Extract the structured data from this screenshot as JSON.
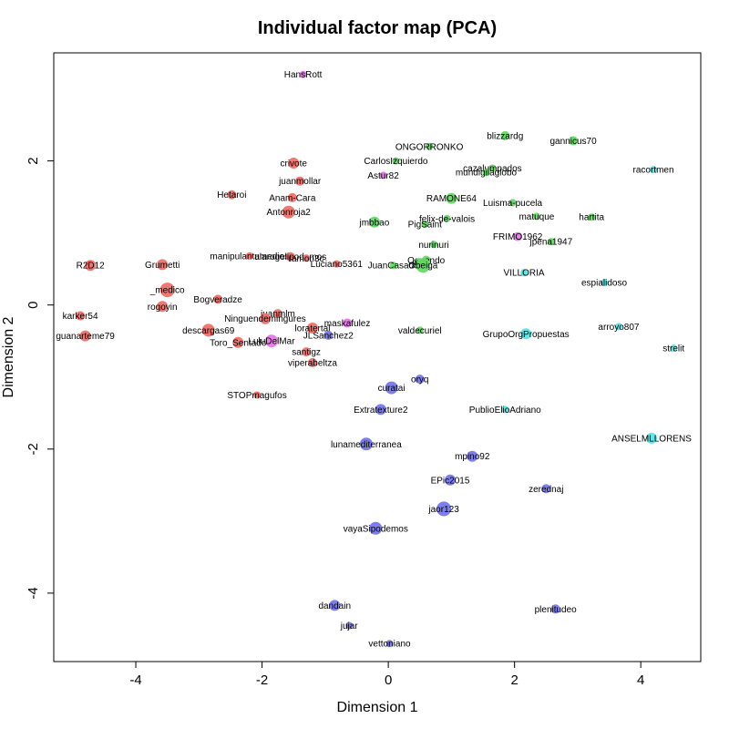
{
  "chart_data": {
    "type": "scatter",
    "title": "Individual factor map (PCA)",
    "xlabel": "Dimension 1",
    "ylabel": "Dimension 2",
    "xlim": [
      -5.3,
      4.95
    ],
    "ylim": [
      -4.95,
      3.5
    ],
    "xticks": [
      -4,
      -2,
      0,
      2,
      4
    ],
    "yticks": [
      -4,
      -2,
      0,
      2
    ],
    "grid": false,
    "colors": {
      "red": "#f0706a",
      "green": "#66d966",
      "blue": "#7777ee",
      "cyan": "#55e6e6",
      "magenta": "#e877e8"
    },
    "points": [
      {
        "label": "HansRott",
        "x": -1.35,
        "y": 3.2,
        "c": "magenta",
        "r": 4
      },
      {
        "label": "blizzardg",
        "x": 1.85,
        "y": 2.35,
        "c": "green",
        "r": 5
      },
      {
        "label": "gannicus70",
        "x": 2.93,
        "y": 2.28,
        "c": "green",
        "r": 5
      },
      {
        "label": "ONGORRONKO",
        "x": 0.65,
        "y": 2.2,
        "c": "green",
        "r": 4
      },
      {
        "label": "crivote",
        "x": -1.5,
        "y": 1.97,
        "c": "red",
        "r": 6
      },
      {
        "label": "CarlosIzquierdo",
        "x": 0.12,
        "y": 2.0,
        "c": "green",
        "r": 4
      },
      {
        "label": "cazalumpados",
        "x": 1.65,
        "y": 1.9,
        "c": "green",
        "r": 4
      },
      {
        "label": "mundigilaglobo",
        "x": 1.55,
        "y": 1.84,
        "c": "green",
        "r": 4
      },
      {
        "label": "racortmen",
        "x": 4.2,
        "y": 1.88,
        "c": "cyan",
        "r": 4
      },
      {
        "label": "Astur82",
        "x": -0.08,
        "y": 1.8,
        "c": "magenta",
        "r": 4
      },
      {
        "label": "juanmollar",
        "x": -1.4,
        "y": 1.72,
        "c": "red",
        "r": 5
      },
      {
        "label": "Hetaroi",
        "x": -2.48,
        "y": 1.53,
        "c": "red",
        "r": 5
      },
      {
        "label": "Anam-Cara",
        "x": -1.52,
        "y": 1.49,
        "c": "red",
        "r": 5
      },
      {
        "label": "RAMONE64",
        "x": 1.0,
        "y": 1.48,
        "c": "green",
        "r": 6
      },
      {
        "label": "Luisma-pucela",
        "x": 1.97,
        "y": 1.42,
        "c": "green",
        "r": 4
      },
      {
        "label": "Antonroja2",
        "x": -1.58,
        "y": 1.29,
        "c": "red",
        "r": 7
      },
      {
        "label": "matuque",
        "x": 2.35,
        "y": 1.23,
        "c": "green",
        "r": 4
      },
      {
        "label": "hartita",
        "x": 3.22,
        "y": 1.22,
        "c": "green",
        "r": 4
      },
      {
        "label": "felix-de-valois",
        "x": 0.93,
        "y": 1.2,
        "c": "green",
        "r": 4
      },
      {
        "label": "jmbbao",
        "x": -0.22,
        "y": 1.15,
        "c": "green",
        "r": 6
      },
      {
        "label": "PigSaint",
        "x": 0.58,
        "y": 1.12,
        "c": "green",
        "r": 4
      },
      {
        "label": "FRIMO1962",
        "x": 2.05,
        "y": 0.95,
        "c": "magenta",
        "r": 5
      },
      {
        "label": "jpena1947",
        "x": 2.58,
        "y": 0.88,
        "c": "green",
        "r": 4
      },
      {
        "label": "nurinuri",
        "x": 0.72,
        "y": 0.84,
        "c": "green",
        "r": 4
      },
      {
        "label": "manipulantumedios",
        "x": -2.2,
        "y": 0.68,
        "c": "red",
        "r": 4
      },
      {
        "label": "alarogelipodemos",
        "x": -1.55,
        "y": 0.67,
        "c": "red",
        "r": 5
      },
      {
        "label": "ramon3c",
        "x": -1.3,
        "y": 0.65,
        "c": "red",
        "r": 4
      },
      {
        "label": "Luciano5361",
        "x": -0.82,
        "y": 0.57,
        "c": "red",
        "r": 4
      },
      {
        "label": "Oquendo",
        "x": 0.6,
        "y": 0.62,
        "c": "green",
        "r": 5
      },
      {
        "label": "jrvr",
        "x": 0.48,
        "y": 0.6,
        "c": "green",
        "r": 4
      },
      {
        "label": "JuanCasado",
        "x": 0.08,
        "y": 0.55,
        "c": "green",
        "r": 4
      },
      {
        "label": "Obeiga",
        "x": 0.55,
        "y": 0.55,
        "c": "green",
        "r": 8
      },
      {
        "label": "R2D12",
        "x": -4.72,
        "y": 0.55,
        "c": "red",
        "r": 6
      },
      {
        "label": "Grumetti",
        "x": -3.58,
        "y": 0.56,
        "c": "red",
        "r": 6
      },
      {
        "label": "VILLORIA",
        "x": 2.15,
        "y": 0.45,
        "c": "cyan",
        "r": 4
      },
      {
        "label": "espialidoso",
        "x": 3.42,
        "y": 0.31,
        "c": "cyan",
        "r": 4
      },
      {
        "label": "_medico",
        "x": -3.5,
        "y": 0.21,
        "c": "red",
        "r": 8
      },
      {
        "label": "Bogveradze",
        "x": -2.7,
        "y": 0.08,
        "c": "red",
        "r": 5
      },
      {
        "label": "rogoyin",
        "x": -3.58,
        "y": -0.02,
        "c": "red",
        "r": 6
      },
      {
        "label": "juanmlm",
        "x": -1.75,
        "y": -0.12,
        "c": "red",
        "r": 5
      },
      {
        "label": "karker54",
        "x": -4.88,
        "y": -0.15,
        "c": "red",
        "r": 5
      },
      {
        "label": "Ninguendemingures",
        "x": -1.95,
        "y": -0.19,
        "c": "red",
        "r": 6
      },
      {
        "label": "maskafulez",
        "x": -0.65,
        "y": -0.25,
        "c": "magenta",
        "r": 5
      },
      {
        "label": "descargas69",
        "x": -2.85,
        "y": -0.35,
        "c": "red",
        "r": 7
      },
      {
        "label": "loratertal",
        "x": -1.2,
        "y": -0.32,
        "c": "red",
        "r": 6
      },
      {
        "label": "valdecuriel",
        "x": 0.5,
        "y": -0.35,
        "c": "green",
        "r": 4
      },
      {
        "label": "arroyo807",
        "x": 3.65,
        "y": -0.3,
        "c": "cyan",
        "r": 4
      },
      {
        "label": "GrupoOrgPropuestas",
        "x": 2.18,
        "y": -0.4,
        "c": "cyan",
        "r": 6
      },
      {
        "label": "JLSanchez2",
        "x": -0.95,
        "y": -0.42,
        "c": "blue",
        "r": 5
      },
      {
        "label": "guanarteme79",
        "x": -4.8,
        "y": -0.43,
        "c": "red",
        "r": 6
      },
      {
        "label": "Toro_Sentado",
        "x": -2.38,
        "y": -0.52,
        "c": "red",
        "r": 6
      },
      {
        "label": "LuluDelMar",
        "x": -1.85,
        "y": -0.5,
        "c": "magenta",
        "r": 7
      },
      {
        "label": "strelit",
        "x": 4.52,
        "y": -0.6,
        "c": "cyan",
        "r": 4
      },
      {
        "label": "santigz",
        "x": -1.3,
        "y": -0.65,
        "c": "red",
        "r": 5
      },
      {
        "label": "viperabeltza",
        "x": -1.2,
        "y": -0.8,
        "c": "red",
        "r": 5
      },
      {
        "label": "oryq",
        "x": 0.5,
        "y": -1.03,
        "c": "blue",
        "r": 5
      },
      {
        "label": "curatai",
        "x": 0.05,
        "y": -1.15,
        "c": "blue",
        "r": 7
      },
      {
        "label": "STOPmagufos",
        "x": -2.08,
        "y": -1.25,
        "c": "red",
        "r": 4
      },
      {
        "label": "Extratexture2",
        "x": -0.12,
        "y": -1.45,
        "c": "blue",
        "r": 6
      },
      {
        "label": "PublioElioAdriano",
        "x": 1.85,
        "y": -1.45,
        "c": "cyan",
        "r": 4
      },
      {
        "label": "ANSELMLLORENS",
        "x": 4.17,
        "y": -1.85,
        "c": "cyan",
        "r": 6
      },
      {
        "label": "lunamediterranea",
        "x": -0.35,
        "y": -1.93,
        "c": "blue",
        "r": 7
      },
      {
        "label": "mpino92",
        "x": 1.33,
        "y": -2.1,
        "c": "blue",
        "r": 6
      },
      {
        "label": "EPic2015",
        "x": 0.98,
        "y": -2.43,
        "c": "blue",
        "r": 6
      },
      {
        "label": "zerednaj",
        "x": 2.5,
        "y": -2.55,
        "c": "blue",
        "r": 5
      },
      {
        "label": "jaor123",
        "x": 0.88,
        "y": -2.83,
        "c": "blue",
        "r": 8
      },
      {
        "label": "vayaSipodemos",
        "x": -0.2,
        "y": -3.1,
        "c": "blue",
        "r": 7
      },
      {
        "label": "dandain",
        "x": -0.85,
        "y": -4.17,
        "c": "blue",
        "r": 6
      },
      {
        "label": "plenitudeo",
        "x": 2.65,
        "y": -4.22,
        "c": "blue",
        "r": 5
      },
      {
        "label": "jujar",
        "x": -0.62,
        "y": -4.45,
        "c": "blue",
        "r": 4
      },
      {
        "label": "vettoniano",
        "x": 0.02,
        "y": -4.7,
        "c": "blue",
        "r": 4
      }
    ]
  }
}
